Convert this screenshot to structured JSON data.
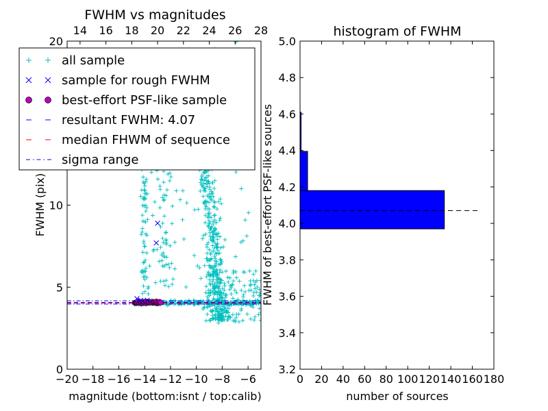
{
  "chart_data": [
    {
      "type": "scatter",
      "title": "FWHM vs magnitudes",
      "xlabel": "magnitude (bottom:isnt / top:calib)",
      "ylabel": "FWHM (pix)",
      "xlim": [
        -20,
        -5
      ],
      "ylim": [
        0,
        20
      ],
      "top_xlim": [
        13,
        28
      ],
      "x_ticks": [
        "−20",
        "−18",
        "−16",
        "−14",
        "−12",
        "−10",
        "−8",
        "−6"
      ],
      "x_tick_values": [
        -20,
        -18,
        -16,
        -14,
        -12,
        -10,
        -8,
        -6
      ],
      "top_x_ticks": [
        "14",
        "16",
        "18",
        "20",
        "22",
        "24",
        "26",
        "28"
      ],
      "top_x_tick_values": [
        14,
        16,
        18,
        20,
        22,
        24,
        26,
        28
      ],
      "y_ticks": [
        "0",
        "5",
        "10"
      ],
      "y_tick_values": [
        0,
        5,
        10
      ],
      "top_left_tick": "20",
      "legend_position": "top-left",
      "grid": false,
      "colors": {
        "all_sample": "#00bfbf",
        "rough_sample": "#0000ff",
        "psf_sample": "#bf00bf",
        "resultant_line": "#0000ff",
        "median_line": "#ff0000",
        "sigma_line": "#0000ff"
      },
      "legend": [
        {
          "label": "all sample",
          "marker": "plus"
        },
        {
          "label": "sample for rough FWHM",
          "marker": "x"
        },
        {
          "label": "best-effort PSF-like sample",
          "marker": "circle"
        },
        {
          "label": "resultant FWHM: 4.07",
          "marker": "dashed"
        },
        {
          "label": "median FHWM of sequence",
          "marker": "dashed-red"
        },
        {
          "label": "sigma range",
          "marker": "dashdot"
        }
      ],
      "resultant_fwhm": 4.07,
      "median_fwhm": 4.02,
      "sigma_range": [
        3.97,
        4.17
      ],
      "rough_sample_points": [
        [
          -13.0,
          8.9
        ],
        [
          -13.1,
          7.7
        ],
        [
          -14.6,
          4.3
        ],
        [
          -14.3,
          4.2
        ],
        [
          -13.8,
          4.2
        ]
      ],
      "psf_sample_x_range": [
        -14.8,
        -12.8
      ],
      "psf_sample_y": 4.07
    },
    {
      "type": "bar",
      "orientation": "horizontal",
      "title": "histogram of FWHM",
      "xlabel": "number of sources",
      "ylabel": "FWHM of best-effort PSF-like sources",
      "xlim": [
        0,
        180
      ],
      "ylim": [
        3.2,
        5.0
      ],
      "x_ticks": [
        "0",
        "20",
        "40",
        "60",
        "80",
        "100",
        "120",
        "140",
        "160",
        "180"
      ],
      "x_tick_values": [
        0,
        20,
        40,
        60,
        80,
        100,
        120,
        140,
        160,
        180
      ],
      "y_ticks": [
        "3.2",
        "3.4",
        "3.6",
        "3.8",
        "4.0",
        "4.2",
        "4.4",
        "4.6",
        "4.8",
        "5.0"
      ],
      "y_tick_values": [
        3.2,
        3.4,
        3.6,
        3.8,
        4.0,
        4.2,
        4.4,
        4.6,
        4.8,
        5.0
      ],
      "bins": [
        {
          "from": 3.97,
          "to": 4.18,
          "count": 134
        },
        {
          "from": 4.18,
          "to": 4.395,
          "count": 7
        },
        {
          "from": 4.395,
          "to": 4.61,
          "count": 1
        }
      ],
      "bar_color": "#0000ff",
      "reference_line": {
        "y": 4.07,
        "x_to": 165
      }
    }
  ]
}
